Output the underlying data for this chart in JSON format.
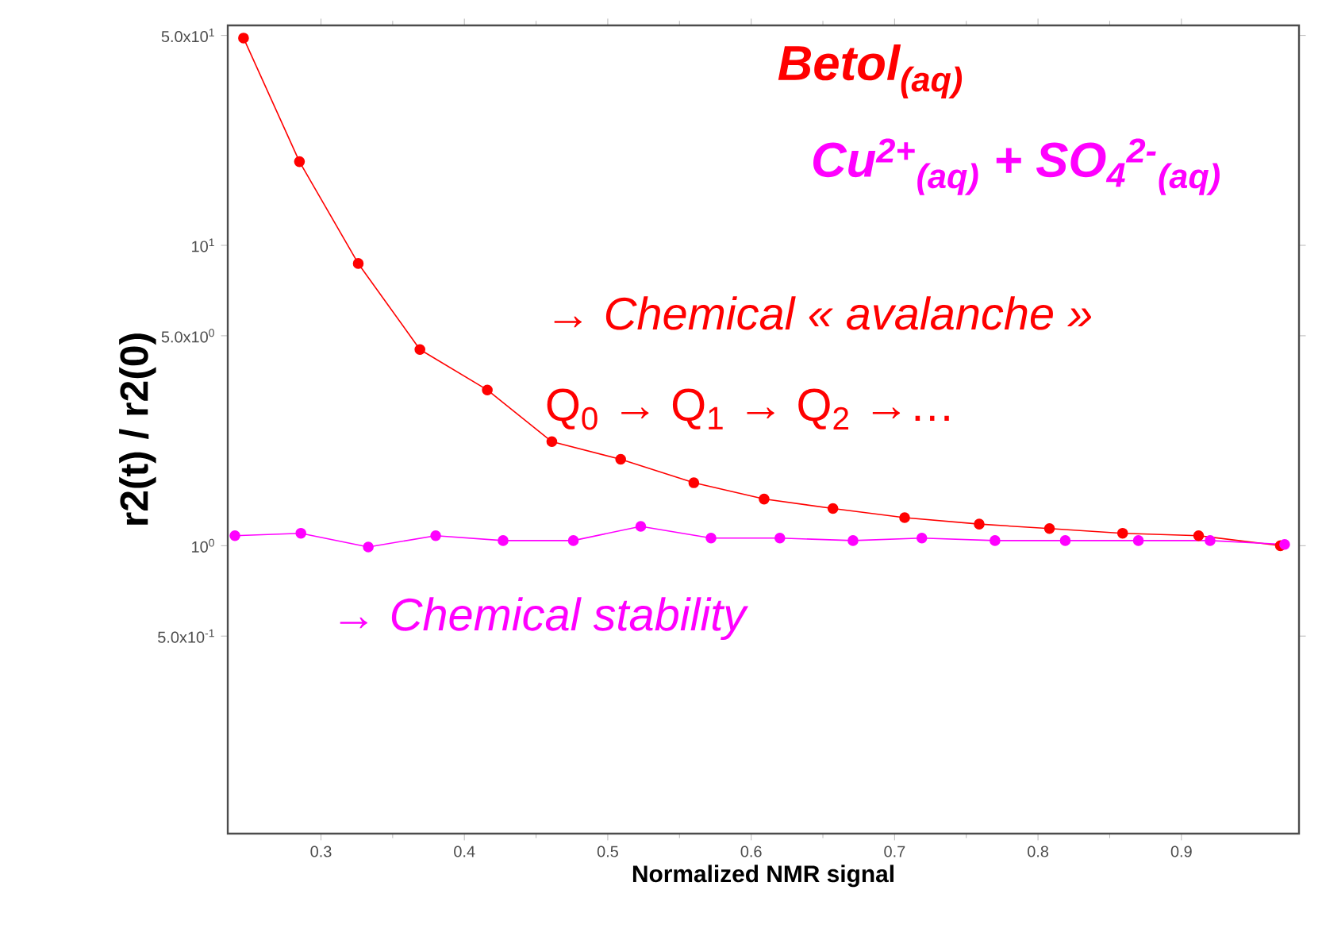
{
  "chart_data": {
    "type": "line",
    "xlabel": "Normalized NMR signal",
    "ylabel": "r2(t) / r2(0)",
    "log": "y",
    "marker": "circle",
    "line_style": "solid",
    "xlim": [
      0.235,
      0.982
    ],
    "xticks": [
      0.3,
      0.4,
      0.5,
      0.6,
      0.7,
      0.8,
      0.9
    ],
    "ylim": [
      0.11,
      54
    ],
    "yticks": [
      {
        "value": 50,
        "label": "5.0x10$^{1}$"
      },
      {
        "value": 10,
        "label": "10$^{1}$"
      },
      {
        "value": 5,
        "label": "5.0x10$^{0}$"
      },
      {
        "value": 1,
        "label": "10$^{0}$"
      },
      {
        "value": 0.5,
        "label": "5.0x10$^{-1}$"
      }
    ],
    "series": [
      {
        "name": "Betol$_{(aq)}$",
        "color": "#ff0000",
        "x": [
          0.246,
          0.285,
          0.326,
          0.369,
          0.416,
          0.461,
          0.509,
          0.56,
          0.609,
          0.657,
          0.707,
          0.759,
          0.808,
          0.859,
          0.912,
          0.969
        ],
        "values": [
          49,
          19.0,
          8.7,
          4.5,
          3.3,
          2.22,
          1.94,
          1.62,
          1.43,
          1.33,
          1.24,
          1.18,
          1.14,
          1.1,
          1.08,
          1.0
        ]
      },
      {
        "name": "Cu$^{2+}$$_{(aq)}$ + SO$_{4}$$^{2-}$$_{(aq)}$",
        "color": "#ff00ff",
        "x": [
          0.24,
          0.286,
          0.333,
          0.38,
          0.427,
          0.476,
          0.523,
          0.572,
          0.62,
          0.671,
          0.719,
          0.77,
          0.819,
          0.87,
          0.92,
          0.972
        ],
        "values": [
          1.08,
          1.1,
          0.99,
          1.08,
          1.04,
          1.04,
          1.16,
          1.06,
          1.06,
          1.04,
          1.06,
          1.04,
          1.04,
          1.04,
          1.04,
          1.01
        ]
      }
    ],
    "annotations": [
      "→ Chemical « avalanche »",
      "Q$_{0}$ → Q$_{1}$ → Q$_{2}$ →…",
      "→ Chemical stability"
    ]
  }
}
